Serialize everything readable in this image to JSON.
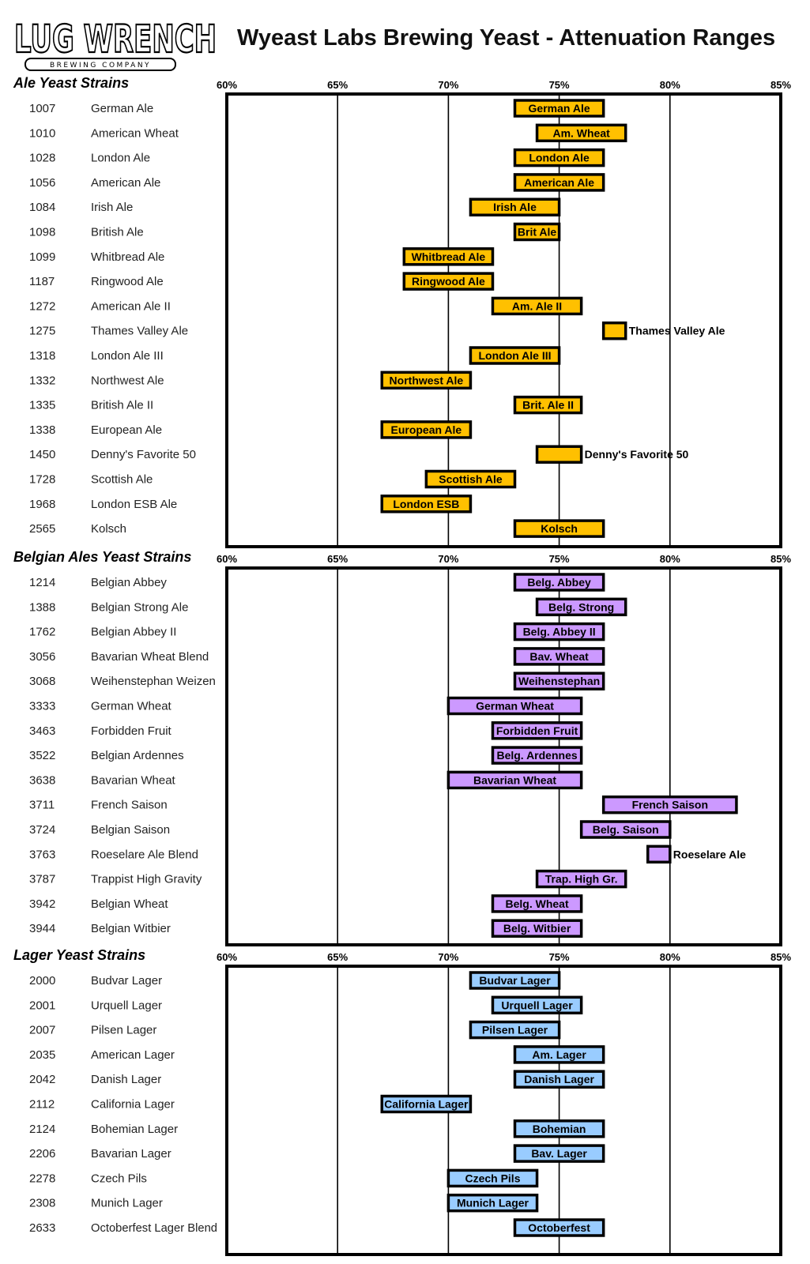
{
  "header": {
    "logo_text": "LUG WRENCH",
    "logo_subtext": "BREWING COMPANY",
    "title": "Wyeast Labs Brewing Yeast - Attenuation Ranges"
  },
  "colors": {
    "ale": "#FFC000",
    "belgian": "#CC99FF",
    "lager": "#99CCFF"
  },
  "chart_data": [
    {
      "type": "bar",
      "orientation": "horizontal-range",
      "title": "Ale Yeast Strains",
      "unit": "%",
      "xlim": [
        60,
        85
      ],
      "xticks": [
        "60%",
        "65%",
        "70%",
        "75%",
        "80%",
        "85%"
      ],
      "color_key": "ale",
      "strains": [
        {
          "code": "1007",
          "name": "German Ale",
          "label": "German Ale",
          "range": [
            73,
            77
          ],
          "label_outside": false
        },
        {
          "code": "1010",
          "name": "American Wheat",
          "label": "Am. Wheat",
          "range": [
            74,
            78
          ],
          "label_outside": false
        },
        {
          "code": "1028",
          "name": "London Ale",
          "label": "London Ale",
          "range": [
            73,
            77
          ],
          "label_outside": false
        },
        {
          "code": "1056",
          "name": "American Ale",
          "label": "American Ale",
          "range": [
            73,
            77
          ],
          "label_outside": false
        },
        {
          "code": "1084",
          "name": "Irish Ale",
          "label": "Irish Ale",
          "range": [
            71,
            75
          ],
          "label_outside": false
        },
        {
          "code": "1098",
          "name": "British Ale",
          "label": "Brit Ale",
          "range": [
            73,
            75
          ],
          "label_outside": false
        },
        {
          "code": "1099",
          "name": "Whitbread Ale",
          "label": "Whitbread Ale",
          "range": [
            68,
            72
          ],
          "label_outside": false
        },
        {
          "code": "1187",
          "name": "Ringwood Ale",
          "label": "Ringwood Ale",
          "range": [
            68,
            72
          ],
          "label_outside": false
        },
        {
          "code": "1272",
          "name": "American Ale II",
          "label": "Am. Ale II",
          "range": [
            72,
            76
          ],
          "label_outside": false
        },
        {
          "code": "1275",
          "name": "Thames Valley Ale",
          "label": "Thames Valley Ale",
          "range": [
            77,
            78
          ],
          "label_outside": true
        },
        {
          "code": "1318",
          "name": "London Ale III",
          "label": "London Ale III",
          "range": [
            71,
            75
          ],
          "label_outside": false
        },
        {
          "code": "1332",
          "name": "Northwest Ale",
          "label": "Northwest Ale",
          "range": [
            67,
            71
          ],
          "label_outside": false
        },
        {
          "code": "1335",
          "name": "British Ale II",
          "label": "Brit. Ale II",
          "range": [
            73,
            76
          ],
          "label_outside": false
        },
        {
          "code": "1338",
          "name": "European Ale",
          "label": "European Ale",
          "range": [
            67,
            71
          ],
          "label_outside": false
        },
        {
          "code": "1450",
          "name": "Denny's Favorite 50",
          "label": "Denny's Favorite 50",
          "range": [
            74,
            76
          ],
          "label_outside": true
        },
        {
          "code": "1728",
          "name": "Scottish Ale",
          "label": "Scottish Ale",
          "range": [
            69,
            73
          ],
          "label_outside": false
        },
        {
          "code": "1968",
          "name": "London ESB Ale",
          "label": "London ESB",
          "range": [
            67,
            71
          ],
          "label_outside": false
        },
        {
          "code": "2565",
          "name": "Kolsch",
          "label": "Kolsch",
          "range": [
            73,
            77
          ],
          "label_outside": false
        }
      ]
    },
    {
      "type": "bar",
      "orientation": "horizontal-range",
      "title": "Belgian Ales Yeast Strains",
      "unit": "%",
      "xlim": [
        60,
        85
      ],
      "xticks": [
        "60%",
        "65%",
        "70%",
        "75%",
        "80%",
        "85%"
      ],
      "color_key": "belgian",
      "strains": [
        {
          "code": "1214",
          "name": "Belgian Abbey",
          "label": "Belg. Abbey",
          "range": [
            73,
            77
          ],
          "label_outside": false
        },
        {
          "code": "1388",
          "name": "Belgian Strong Ale",
          "label": "Belg. Strong",
          "range": [
            74,
            78
          ],
          "label_outside": false
        },
        {
          "code": "1762",
          "name": "Belgian Abbey II",
          "label": "Belg. Abbey II",
          "range": [
            73,
            77
          ],
          "label_outside": false
        },
        {
          "code": "3056",
          "name": "Bavarian Wheat Blend",
          "label": "Bav. Wheat",
          "range": [
            73,
            77
          ],
          "label_outside": false
        },
        {
          "code": "3068",
          "name": "Weihenstephan Weizen",
          "label": "Weihenstephan",
          "range": [
            73,
            77
          ],
          "label_outside": false
        },
        {
          "code": "3333",
          "name": "German Wheat",
          "label": "German Wheat",
          "range": [
            70,
            76
          ],
          "label_outside": false
        },
        {
          "code": "3463",
          "name": "Forbidden Fruit",
          "label": "Forbidden Fruit",
          "range": [
            72,
            76
          ],
          "label_outside": false
        },
        {
          "code": "3522",
          "name": "Belgian Ardennes",
          "label": "Belg. Ardennes",
          "range": [
            72,
            76
          ],
          "label_outside": false
        },
        {
          "code": "3638",
          "name": "Bavarian Wheat",
          "label": "Bavarian Wheat",
          "range": [
            70,
            76
          ],
          "label_outside": false
        },
        {
          "code": "3711",
          "name": "French Saison",
          "label": "French Saison",
          "range": [
            77,
            83
          ],
          "label_outside": false
        },
        {
          "code": "3724",
          "name": "Belgian Saison",
          "label": "Belg. Saison",
          "range": [
            76,
            80
          ],
          "label_outside": false
        },
        {
          "code": "3763",
          "name": "Roeselare Ale Blend",
          "label": "Roeselare Ale",
          "range": [
            79,
            80
          ],
          "label_outside": true
        },
        {
          "code": "3787",
          "name": "Trappist High Gravity",
          "label": "Trap. High Gr.",
          "range": [
            74,
            78
          ],
          "label_outside": false
        },
        {
          "code": "3942",
          "name": "Belgian Wheat",
          "label": "Belg. Wheat",
          "range": [
            72,
            76
          ],
          "label_outside": false
        },
        {
          "code": "3944",
          "name": "Belgian Witbier",
          "label": "Belg. Witbier",
          "range": [
            72,
            76
          ],
          "label_outside": false
        }
      ]
    },
    {
      "type": "bar",
      "orientation": "horizontal-range",
      "title": "Lager Yeast Strains",
      "unit": "%",
      "xlim": [
        60,
        85
      ],
      "xticks": [
        "60%",
        "65%",
        "70%",
        "75%",
        "80%",
        "85%"
      ],
      "color_key": "lager",
      "strains": [
        {
          "code": "2000",
          "name": "Budvar Lager",
          "label": "Budvar Lager",
          "range": [
            71,
            75
          ],
          "label_outside": false
        },
        {
          "code": "2001",
          "name": "Urquell Lager",
          "label": "Urquell Lager",
          "range": [
            72,
            76
          ],
          "label_outside": false
        },
        {
          "code": "2007",
          "name": "Pilsen Lager",
          "label": "Pilsen Lager",
          "range": [
            71,
            75
          ],
          "label_outside": false
        },
        {
          "code": "2035",
          "name": "American Lager",
          "label": "Am. Lager",
          "range": [
            73,
            77
          ],
          "label_outside": false
        },
        {
          "code": "2042",
          "name": "Danish Lager",
          "label": "Danish Lager",
          "range": [
            73,
            77
          ],
          "label_outside": false
        },
        {
          "code": "2112",
          "name": "California Lager",
          "label": "California Lager",
          "range": [
            67,
            71
          ],
          "label_outside": false
        },
        {
          "code": "2124",
          "name": "Bohemian Lager",
          "label": "Bohemian",
          "range": [
            73,
            77
          ],
          "label_outside": false
        },
        {
          "code": "2206",
          "name": "Bavarian Lager",
          "label": "Bav. Lager",
          "range": [
            73,
            77
          ],
          "label_outside": false
        },
        {
          "code": "2278",
          "name": "Czech Pils",
          "label": "Czech Pils",
          "range": [
            70,
            74
          ],
          "label_outside": false
        },
        {
          "code": "2308",
          "name": "Munich Lager",
          "label": "Munich Lager",
          "range": [
            70,
            74
          ],
          "label_outside": false
        },
        {
          "code": "2633",
          "name": "Octoberfest Lager Blend",
          "label": "Octoberfest",
          "range": [
            73,
            77
          ],
          "label_outside": false
        }
      ]
    }
  ]
}
